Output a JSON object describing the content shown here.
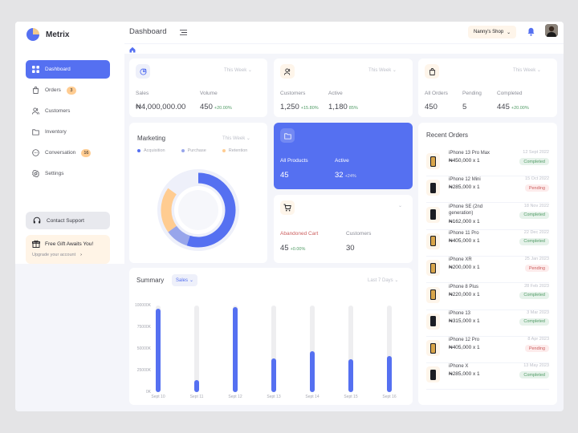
{
  "app": {
    "name": "Metrix"
  },
  "sidebar": {
    "items": [
      {
        "label": "Dashboard",
        "badge": ""
      },
      {
        "label": "Orders",
        "badge": "3"
      },
      {
        "label": "Customers",
        "badge": ""
      },
      {
        "label": "Inventory",
        "badge": ""
      },
      {
        "label": "Conversation",
        "badge": "16"
      },
      {
        "label": "Settings",
        "badge": ""
      }
    ],
    "support_label": "Contact Support",
    "gift_title": "Free Gift Awaits You!",
    "gift_link": "Upgrade your account"
  },
  "header": {
    "title": "Dashboard",
    "shop": "Nanny's Shop"
  },
  "cards": {
    "sales": {
      "period": "This Week",
      "label1": "Sales",
      "value1": "₦4,000,000.00",
      "label2": "Volume",
      "value2": "450",
      "change2": "+20.00%"
    },
    "customers": {
      "period": "This Week",
      "label1": "Customers",
      "value1": "1,250",
      "change1": "+15.80%",
      "label2": "Active",
      "value2": "1,180",
      "change2": "85%"
    },
    "orders": {
      "period": "This Week",
      "label1": "All Orders",
      "value1": "450",
      "label2": "Pending",
      "value2": "5",
      "label3": "Completed",
      "value3": "445",
      "change3": "+20.00%"
    },
    "marketing": {
      "title": "Marketing",
      "period": "This Week",
      "legend": [
        "Acquisition",
        "Purchase",
        "Retention"
      ]
    },
    "products": {
      "label1": "All Products",
      "value1": "45",
      "label2": "Active",
      "value2": "32",
      "change2": "+24%"
    },
    "cart": {
      "label1": "Abandoned Cart",
      "value1": "45",
      "change1": "+0.00%",
      "label2": "Customers",
      "value2": "30"
    }
  },
  "summary": {
    "title": "Summary",
    "filter": "Sales",
    "period": "Last 7 Days"
  },
  "chart_data": {
    "type": "bar",
    "categories": [
      "Sept 10",
      "Sept 11",
      "Sept 12",
      "Sept 13",
      "Sept 14",
      "Sept 15",
      "Sept 16"
    ],
    "values": [
      96000,
      14000,
      98000,
      39000,
      47000,
      38000,
      42000
    ],
    "y_ticks": [
      "100000K",
      "75000K",
      "50000K",
      "25000K",
      "0K"
    ],
    "ylim": [
      0,
      100000
    ],
    "colors": {
      "fill": "#5570f1",
      "track": "#eeeef0"
    }
  },
  "recent_orders": {
    "title": "Recent Orders",
    "items": [
      {
        "name": "iPhone 13 Pro Max",
        "price": "₦450,000 x 1",
        "date": "12 Sept 2022",
        "status": "Completed",
        "phone": "gold"
      },
      {
        "name": "iPhone 12 Mini",
        "price": "₦285,000 x 1",
        "date": "15 Oct 2022",
        "status": "Pending",
        "phone": "dark"
      },
      {
        "name": "iPhone SE (2nd generation)",
        "price": "₦162,000 x 1",
        "date": "18 Nov 2022",
        "status": "Completed",
        "phone": "dark"
      },
      {
        "name": "iPhone 11 Pro",
        "price": "₦405,000 x 1",
        "date": "22 Dec 2022",
        "status": "Completed",
        "phone": "gold"
      },
      {
        "name": "iPhone XR",
        "price": "₦200,000 x 1",
        "date": "25 Jan 2023",
        "status": "Pending",
        "phone": "gold"
      },
      {
        "name": "iPhone 8 Plus",
        "price": "₦220,000 x 1",
        "date": "28 Feb 2023",
        "status": "Completed",
        "phone": "gold"
      },
      {
        "name": "iPhone 13",
        "price": "₦315,000 x 1",
        "date": "3 Mar 2023",
        "status": "Completed",
        "phone": "dark"
      },
      {
        "name": "iPhone 12 Pro",
        "price": "₦405,000 x 1",
        "date": "8 Apr 2023",
        "status": "Pending",
        "phone": "gold"
      },
      {
        "name": "iPhone X",
        "price": "₦285,000 x 1",
        "date": "13 May 2023",
        "status": "Completed",
        "phone": "dark"
      }
    ]
  },
  "donut": {
    "segments": [
      {
        "name": "Acquisition",
        "value": 0.55,
        "color": "#5570f1"
      },
      {
        "name": "Purchase",
        "value": 0.1,
        "color": "#97a5eb"
      },
      {
        "name": "Retention",
        "value": 0.2,
        "color": "#ffcc91"
      },
      {
        "name": "rest",
        "value": 0.15,
        "color": "#eef0fa"
      }
    ]
  }
}
